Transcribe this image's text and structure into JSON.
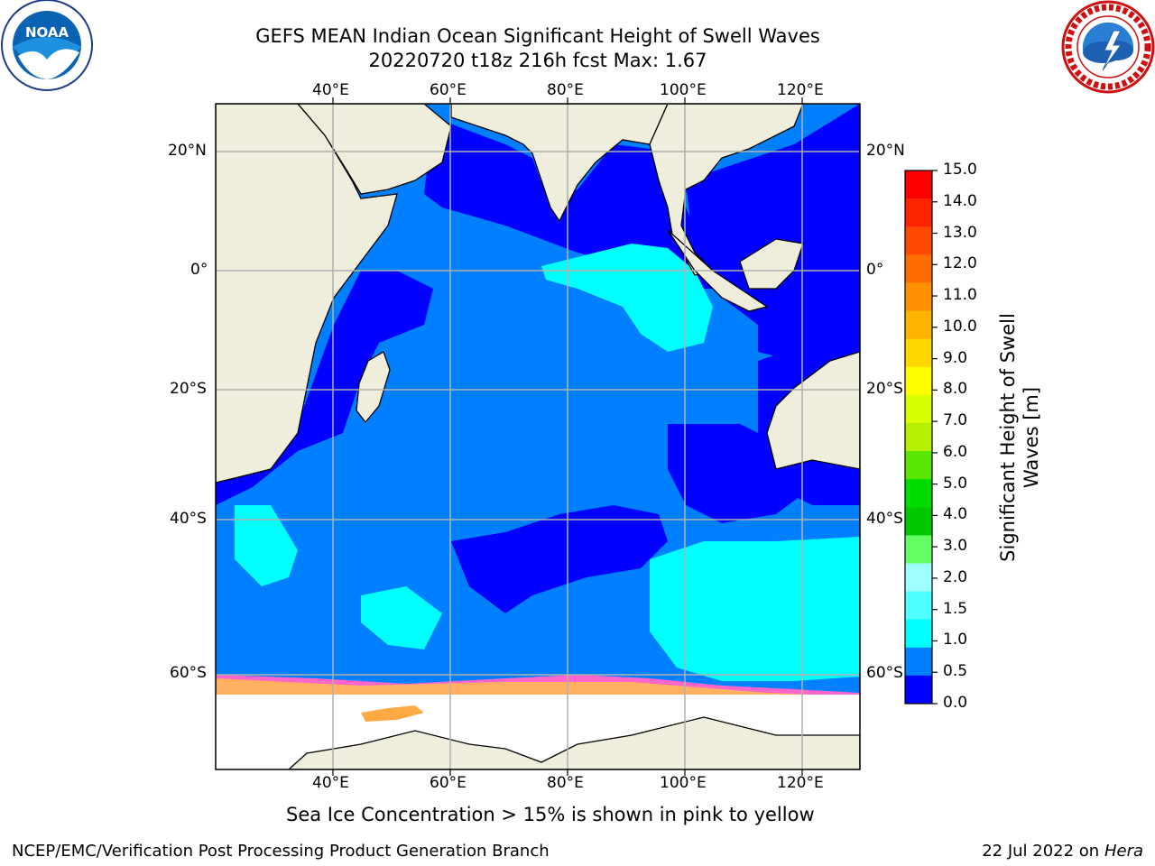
{
  "title": {
    "line1": "GEFS MEAN Indian Ocean Significant Height of Swell Waves",
    "line2": "20220720 t18z 216h fcst   Max: 1.67"
  },
  "map": {
    "lon_labels": [
      "40°E",
      "60°E",
      "80°E",
      "100°E",
      "120°E"
    ],
    "lat_labels": [
      "20°N",
      "0°",
      "20°S",
      "40°S",
      "60°S"
    ],
    "note": "Sea Ice Concentration > 15% is shown in pink to yellow"
  },
  "colorbar": {
    "label": "Significant Height of Swell Waves [m]",
    "ticks": [
      "15.0",
      "14.0",
      "13.0",
      "12.0",
      "11.0",
      "10.0",
      "9.0",
      "8.0",
      "7.0",
      "6.0",
      "5.0",
      "4.0",
      "3.0",
      "2.0",
      "1.5",
      "1.0",
      "0.5",
      "0.0"
    ],
    "colors": [
      "#ff0000",
      "#ff2400",
      "#ff4800",
      "#ff6c00",
      "#ff9000",
      "#ffb400",
      "#ffd800",
      "#fffc00",
      "#d8ff00",
      "#b4f000",
      "#5ae600",
      "#00dc00",
      "#00c800",
      "#64ff64",
      "#a0ffff",
      "#50ffff",
      "#00ffff",
      "#0080ff",
      "#0000ff"
    ]
  },
  "logos": {
    "noaa_text": "NOAA",
    "noaa_ring": "NATIONAL OCEANIC AND ATMOSPHERIC ADMINISTRATION",
    "nws_ring": "NATIONAL WEATHER SERVICE"
  },
  "footer": {
    "left": "NCEP/EMC/Verification Post Processing Product Generation Branch",
    "right_date": "22 Jul 2022 on ",
    "right_host": "Hera"
  },
  "palette": {
    "land": "#efeedc",
    "ice": "#ffffff",
    "deep_blue": "#0000ff",
    "mid_blue": "#0080ff",
    "cyan": "#00ffff"
  }
}
